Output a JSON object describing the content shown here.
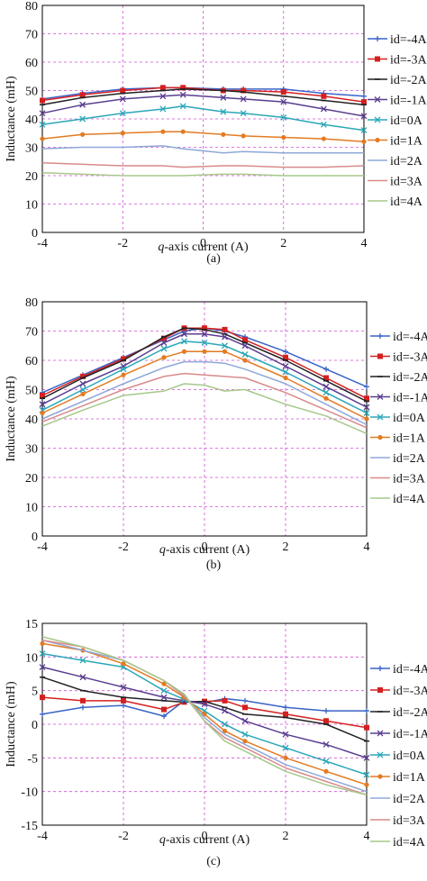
{
  "colors": {
    "grid": "#d34fd3",
    "frame": "#000000",
    "series": [
      "#3a64c8",
      "#d42020",
      "#222222",
      "#5a3e8f",
      "#2aa7b8",
      "#e37b22",
      "#8fa8d8",
      "#d98a8a",
      "#a6c88a"
    ]
  },
  "markers": [
    "plus",
    "square",
    "dash",
    "cross",
    "x",
    "circle",
    "line",
    "line",
    "line"
  ],
  "chart_data": [
    {
      "type": "line",
      "caption": "(a)",
      "xlabel_prefix": "q",
      "xlabel": "-axis current (A)",
      "ylabel": "Inductance (mH)",
      "xlim": [
        -4,
        4
      ],
      "ylim": [
        0,
        80
      ],
      "x_ticks": [
        "-4",
        "-2",
        "0",
        "2",
        "4"
      ],
      "y_ticks": [
        "0",
        "10",
        "20",
        "30",
        "40",
        "50",
        "60",
        "70",
        "80"
      ],
      "legend": [
        "id=-4A",
        "id=-3A",
        "id=-2A",
        "id=-1A",
        "id=0A",
        "id=1A",
        "id=2A",
        "id=3A",
        "id=4A"
      ],
      "x": [
        -4,
        -3,
        -2,
        -1,
        -0.5,
        0.5,
        1,
        2,
        3,
        4
      ],
      "series": [
        {
          "name": "id=-4A",
          "values": [
            47,
            49,
            50.5,
            51,
            51,
            50.5,
            50.5,
            50.5,
            49,
            48
          ]
        },
        {
          "name": "id=-3A",
          "values": [
            46.5,
            48.5,
            50,
            51,
            51,
            50,
            50,
            49.5,
            48,
            46
          ]
        },
        {
          "name": "id=-2A",
          "values": [
            45,
            47.5,
            49,
            50,
            50.5,
            50,
            49.5,
            48,
            46.5,
            45
          ]
        },
        {
          "name": "id=-1A",
          "values": [
            42,
            45,
            47,
            48,
            48.5,
            47.5,
            47,
            46,
            43.5,
            41
          ]
        },
        {
          "name": "id=0A",
          "values": [
            38,
            40,
            42,
            43.5,
            44.5,
            42.5,
            42,
            40.5,
            38,
            36
          ]
        },
        {
          "name": "id=1A",
          "values": [
            33,
            34.5,
            35,
            35.5,
            35.5,
            34.5,
            34,
            33.5,
            33,
            32
          ]
        },
        {
          "name": "id=2A",
          "values": [
            29.5,
            30,
            30,
            30.5,
            29.5,
            28,
            28.5,
            28,
            28,
            28
          ]
        },
        {
          "name": "id=3A",
          "values": [
            24.5,
            24,
            23.5,
            23.5,
            23,
            23.5,
            23.5,
            23,
            23,
            23.5
          ]
        },
        {
          "name": "id=4A",
          "values": [
            21,
            20.5,
            20,
            20,
            20,
            20.5,
            20.5,
            20,
            20,
            20
          ]
        }
      ]
    },
    {
      "type": "line",
      "caption": "(b)",
      "xlabel_prefix": "q",
      "xlabel": "-axis current (A)",
      "ylabel": "Inductance (mH)",
      "xlim": [
        -4,
        4
      ],
      "ylim": [
        0,
        80
      ],
      "x_ticks": [
        "-4",
        "-2",
        "0",
        "2",
        "4"
      ],
      "y_ticks": [
        "0",
        "10",
        "20",
        "30",
        "40",
        "50",
        "60",
        "70",
        "80"
      ],
      "legend": [
        "id=-4A",
        "id=-3A",
        "id=-2A",
        "id=-1A",
        "id=0A",
        "id=1A",
        "id=2A",
        "id=3A",
        "id=4A"
      ],
      "x": [
        -4,
        -3,
        -2,
        -1,
        -0.5,
        0,
        0.5,
        1,
        2,
        3,
        4
      ],
      "series": [
        {
          "name": "id=-4A",
          "values": [
            49,
            55,
            61,
            67,
            70,
            71,
            70,
            68,
            63,
            57,
            51
          ]
        },
        {
          "name": "id=-3A",
          "values": [
            48,
            54.5,
            60.5,
            67.5,
            71,
            71,
            70.5,
            67,
            61,
            54,
            47
          ]
        },
        {
          "name": "id=-2A",
          "values": [
            47,
            54,
            60,
            68,
            71,
            70.5,
            69,
            66,
            60,
            53,
            46
          ]
        },
        {
          "name": "id=-1A",
          "values": [
            45,
            52,
            58,
            66,
            69,
            69,
            68,
            65,
            58,
            51,
            44
          ]
        },
        {
          "name": "id=0A",
          "values": [
            43,
            50,
            57,
            64,
            66.5,
            66,
            65,
            62,
            56,
            49,
            42
          ]
        },
        {
          "name": "id=1A",
          "values": [
            42,
            48.5,
            55,
            61,
            63,
            63,
            63,
            60,
            54,
            47,
            40
          ]
        },
        {
          "name": "id=2A",
          "values": [
            40,
            46,
            52,
            57.5,
            59.5,
            59.5,
            59,
            57,
            52,
            45,
            38
          ]
        },
        {
          "name": "id=3A",
          "values": [
            39,
            44.5,
            50,
            54.5,
            55.5,
            55,
            54.5,
            54,
            49,
            43,
            37
          ]
        },
        {
          "name": "id=4A",
          "values": [
            37.5,
            43,
            48,
            49.5,
            52,
            51.5,
            49.5,
            50,
            45,
            41,
            35
          ]
        }
      ]
    },
    {
      "type": "line",
      "caption": "(c)",
      "xlabel_prefix": "q",
      "xlabel": "-axis current (A)",
      "ylabel": "Inductance (mH)",
      "xlim": [
        -4,
        4
      ],
      "ylim": [
        -15,
        15
      ],
      "x_ticks": [
        "-4",
        "-2",
        "0",
        "2",
        "4"
      ],
      "y_ticks": [
        "-15",
        "-10",
        "-5",
        "0",
        "5",
        "10",
        "15"
      ],
      "legend": [
        "id=-4A",
        "id=-3A",
        "id=-2A",
        "id=-1A",
        "id=0A",
        "id=1A",
        "id=2A",
        "id=3A",
        "id=4A"
      ],
      "x": [
        -4,
        -3,
        -2,
        -1,
        -0.5,
        0,
        0.5,
        1,
        2,
        3,
        4
      ],
      "series": [
        {
          "name": "id=-4A",
          "values": [
            1.5,
            2.5,
            2.8,
            1.2,
            3.5,
            3.2,
            3.8,
            3.5,
            2.5,
            2,
            2
          ]
        },
        {
          "name": "id=-3A",
          "values": [
            4,
            3.5,
            3.5,
            2.2,
            3.3,
            3.4,
            3.5,
            2.5,
            1.5,
            0.5,
            -0.5
          ]
        },
        {
          "name": "id=-2A",
          "values": [
            7,
            5,
            4,
            3.5,
            3.3,
            3.4,
            2.5,
            1.5,
            1,
            0,
            -2.5
          ]
        },
        {
          "name": "id=-1A",
          "values": [
            8.5,
            7,
            5.5,
            4,
            3.5,
            3,
            2,
            0.5,
            -1.5,
            -3,
            -5
          ]
        },
        {
          "name": "id=0A",
          "values": [
            10.5,
            9.5,
            8.5,
            5,
            3.7,
            2,
            0,
            -1.5,
            -3.5,
            -5.5,
            -7.5
          ]
        },
        {
          "name": "id=1A",
          "values": [
            12,
            11,
            9,
            6,
            4,
            1.5,
            -1,
            -2.5,
            -5,
            -7,
            -9
          ]
        },
        {
          "name": "id=2A",
          "values": [
            12.5,
            11,
            9.5,
            6.5,
            4.2,
            1,
            -1.5,
            -3,
            -6,
            -8,
            -10
          ]
        },
        {
          "name": "id=3A",
          "values": [
            12.5,
            11.5,
            9.5,
            6.5,
            4.3,
            0.5,
            -2,
            -3.5,
            -6.5,
            -8.5,
            -10.5
          ]
        },
        {
          "name": "id=4A",
          "values": [
            13,
            11.5,
            9.5,
            6.5,
            4.5,
            0.5,
            -2.5,
            -4,
            -7,
            -9,
            -10.5
          ]
        }
      ]
    }
  ]
}
